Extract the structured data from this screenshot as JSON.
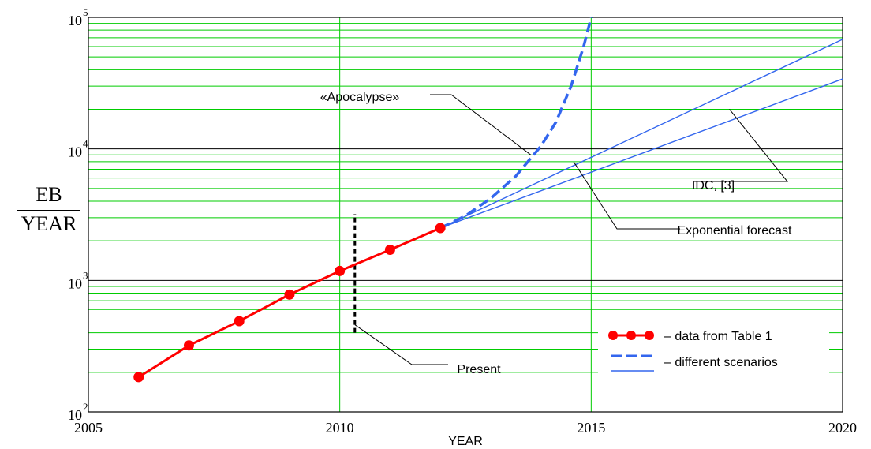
{
  "chart_data": {
    "type": "line",
    "xlabel": "YEAR",
    "ylabel": {
      "numerator": "EB",
      "denominator": "YEAR"
    },
    "x_ticks": [
      "2005",
      "2010",
      "2015",
      "2020"
    ],
    "y_ticks": [
      {
        "base": "10",
        "exp": "2",
        "value": 100
      },
      {
        "base": "10",
        "exp": "3",
        "value": 1000
      },
      {
        "base": "10",
        "exp": "4",
        "value": 10000
      },
      {
        "base": "10",
        "exp": "5",
        "value": 100000
      }
    ],
    "xlim": [
      2005,
      2020
    ],
    "ylim": [
      100,
      100000
    ],
    "yscale": "log",
    "grid": true,
    "series": [
      {
        "name": "data from Table 1",
        "style": "line-markers",
        "color": "#ff0000",
        "x": [
          2006,
          2007,
          2008,
          2009,
          2010,
          2011,
          2012
        ],
        "y": [
          184,
          320,
          490,
          780,
          1180,
          1710,
          2500
        ]
      },
      {
        "style": "dashed",
        "color": "#3366ee",
        "x": [
          2012,
          2012.5,
          2013,
          2013.5,
          2014,
          2014.3,
          2014.6,
          2014.85,
          2015
        ],
        "y": [
          2500,
          3100,
          4200,
          6200,
          10500,
          16000,
          30000,
          60000,
          100000
        ]
      },
      {
        "style": "solid",
        "color": "#3366ee",
        "x": [
          2012,
          2020
        ],
        "y": [
          2500,
          68000
        ]
      },
      {
        "style": "solid",
        "color": "#3366ee",
        "x": [
          2012,
          2020
        ],
        "y": [
          2500,
          34000
        ]
      },
      {
        "style": "dashed-vertical",
        "color": "#000000",
        "x": [
          2010.3,
          2010.3
        ],
        "y": [
          400,
          3200
        ]
      }
    ],
    "annotations": [
      {
        "text": "«Apocalypse»"
      },
      {
        "text": "IDC, [3]"
      },
      {
        "text": "Exponential forecast"
      },
      {
        "text": "Present"
      }
    ],
    "legend": {
      "placement": "bottom-right",
      "entries": [
        {
          "label": "– data from Table 1",
          "style": "line-markers",
          "color": "#ff0000"
        },
        {
          "label": "– different scenarios",
          "style": "dashed-and-solid",
          "color": "#3366ee"
        }
      ]
    },
    "colors": {
      "grid": "#00cc00",
      "major_grid": "#000000",
      "data": "#ff0000",
      "scenario": "#3366ee"
    }
  }
}
